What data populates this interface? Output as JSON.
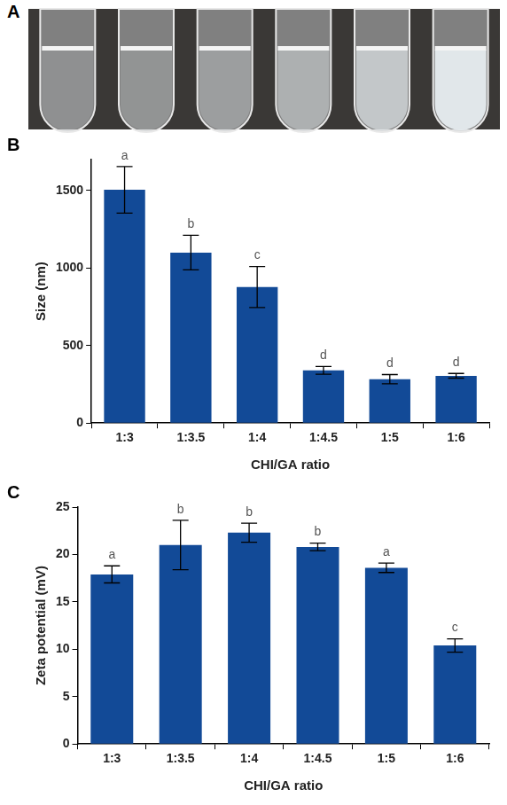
{
  "photo": {
    "label": "A"
  },
  "chart_data": [
    {
      "type": "bar",
      "panel": "B",
      "x_label": "CHI/GA ratio",
      "y_label": "Size (nm)",
      "categories": [
        "1:3",
        "1:3.5",
        "1:4",
        "1:4.5",
        "1:5",
        "1:6"
      ],
      "values": [
        1505,
        1100,
        878,
        340,
        283,
        305
      ],
      "errors": [
        150,
        112,
        132,
        25,
        30,
        15
      ],
      "letters": [
        "a",
        "b",
        "c",
        "d",
        "d",
        "d"
      ],
      "color": "#124a97",
      "ylim": [
        0,
        1700
      ],
      "yticks": [
        0,
        500,
        1000,
        1500
      ],
      "grid": false
    },
    {
      "type": "bar",
      "panel": "C",
      "x_label": "CHI/GA ratio",
      "y_label": "Zeta potential (mV)",
      "categories": [
        "1:3",
        "1:3.5",
        "1:4",
        "1:4.5",
        "1:5",
        "1:6"
      ],
      "values": [
        17.9,
        21.0,
        22.3,
        20.8,
        18.6,
        10.4
      ],
      "errors": [
        0.9,
        2.6,
        1.0,
        0.4,
        0.5,
        0.7
      ],
      "letters": [
        "a",
        "b",
        "b",
        "b",
        "a",
        "c"
      ],
      "color": "#124a97",
      "ylim": [
        0,
        25
      ],
      "yticks": [
        0,
        5,
        10,
        15,
        20,
        25
      ],
      "grid": false
    }
  ]
}
